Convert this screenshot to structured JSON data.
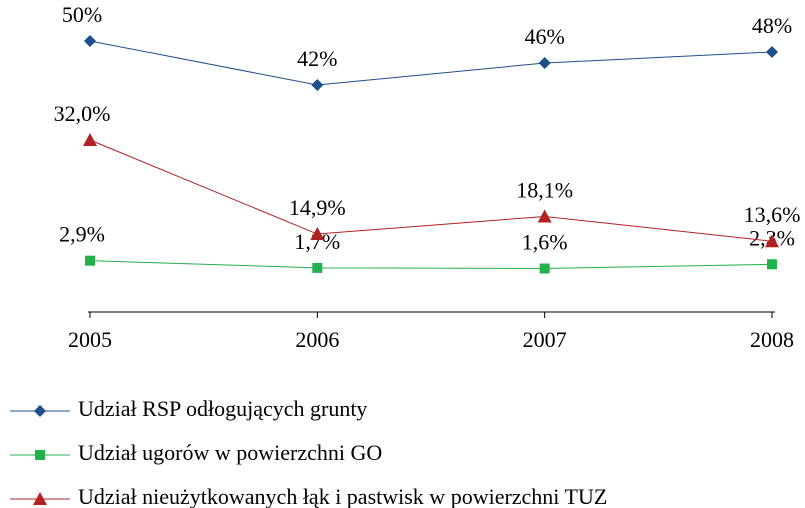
{
  "chart_data": {
    "type": "line",
    "categories": [
      "2005",
      "2006",
      "2007",
      "2008"
    ],
    "ylim": [
      0,
      55
    ],
    "y2lim": [
      -6.3,
      44
    ],
    "series": [
      {
        "name": "Udział RSP odłogujących grunty",
        "color": "#1f4e8c",
        "marker": "diamond",
        "values": [
          50,
          42,
          46,
          48
        ],
        "value_labels": [
          "50%",
          "42%",
          "46%",
          "48%"
        ]
      },
      {
        "name": "Udział ugorów w powierzchni GO",
        "color": "#22b14c",
        "marker": "square",
        "axis": "y2",
        "values": [
          2.9,
          1.7,
          1.6,
          2.3
        ],
        "value_labels": [
          "2,9%",
          "1,7%",
          "1,6%",
          "2,3%"
        ]
      },
      {
        "name": "Udział nieużytkowanych łąk i pastwisk w powierzchni TUZ",
        "color": "#b22222",
        "marker": "triangle",
        "values": [
          32.0,
          14.9,
          18.1,
          13.6
        ],
        "value_labels": [
          "32,0%",
          "14,9%",
          "18,1%",
          "13,6%"
        ]
      }
    ]
  }
}
